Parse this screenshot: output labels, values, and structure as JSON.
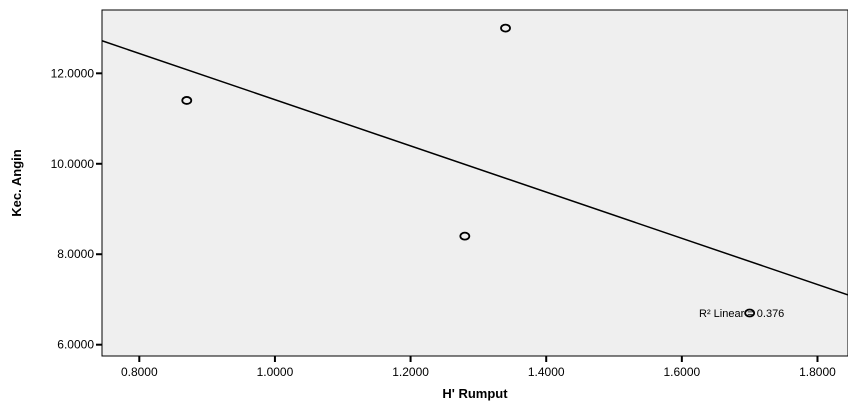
{
  "chart_data": {
    "type": "scatter",
    "title": "",
    "xlabel": "H' Rumput",
    "ylabel": "Kec. Angin",
    "xlim": [
      0.745,
      1.845
    ],
    "ylim": [
      5.75,
      13.4
    ],
    "x_ticks": [
      0.8,
      1.0,
      1.2,
      1.4,
      1.6,
      1.8
    ],
    "x_tick_labels": [
      "0.8000",
      "1.0000",
      "1.2000",
      "1.4000",
      "1.6000",
      "1.8000"
    ],
    "y_ticks": [
      6,
      8,
      10,
      12
    ],
    "y_tick_labels": [
      "6.0000",
      "8.0000",
      "10.0000",
      "12.0000"
    ],
    "grid": false,
    "points": [
      {
        "x": 0.87,
        "y": 11.4
      },
      {
        "x": 1.28,
        "y": 8.4
      },
      {
        "x": 1.34,
        "y": 13.0
      },
      {
        "x": 1.7,
        "y": 6.7
      }
    ],
    "fit_line": {
      "type": "linear",
      "x": [
        0.745,
        1.845
      ],
      "y": [
        12.72,
        7.1
      ]
    },
    "annotation": "R² Linear = 0.376",
    "colors": {
      "plot_background": "#efefef",
      "marker_stroke": "#000000",
      "line": "#000000"
    }
  }
}
